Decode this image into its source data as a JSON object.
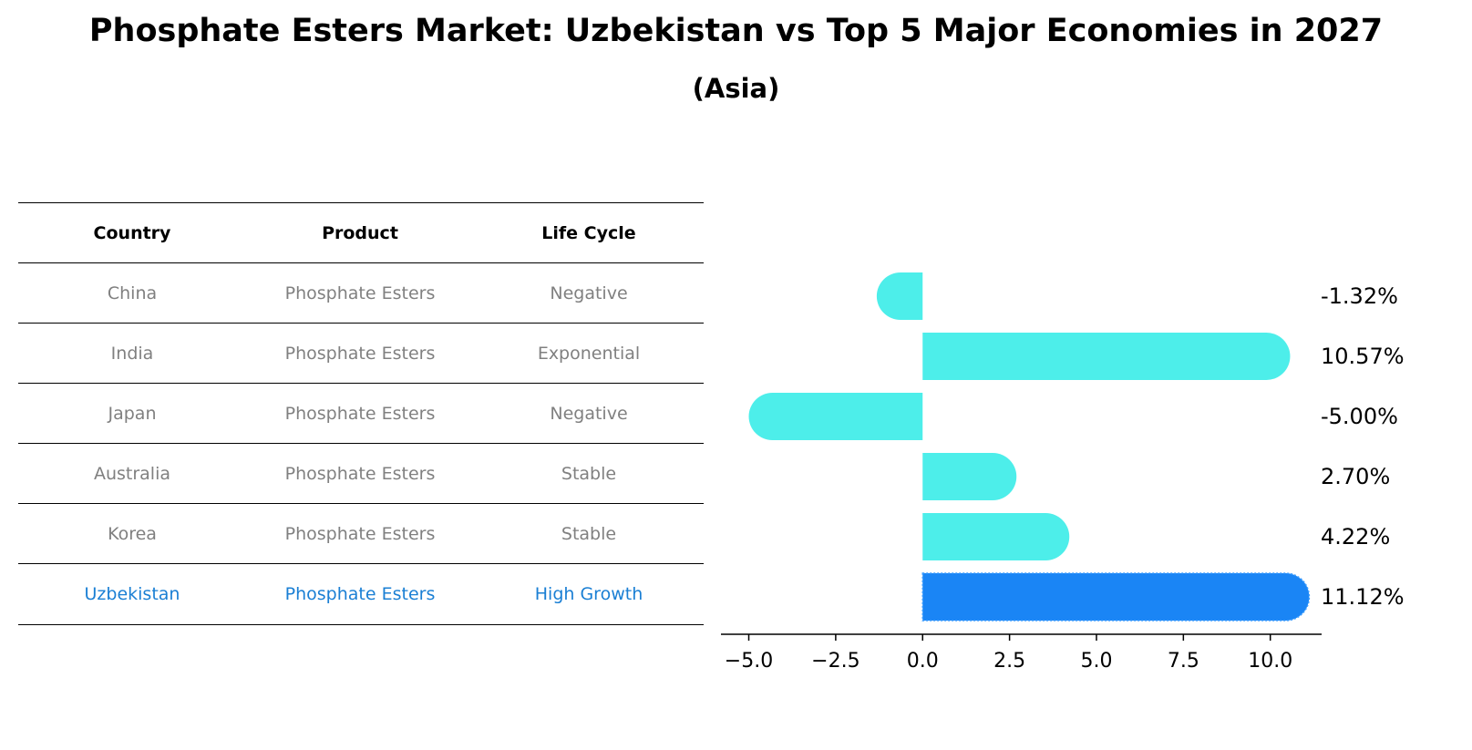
{
  "title": "Phosphate Esters Market: Uzbekistan vs Top 5 Major Economies in 2027",
  "subtitle": "(Asia)",
  "table": {
    "headers": [
      "Country",
      "Product",
      "Life Cycle"
    ],
    "rows": [
      [
        "China",
        "Phosphate Esters",
        "Negative"
      ],
      [
        "India",
        "Phosphate Esters",
        "Exponential"
      ],
      [
        "Japan",
        "Phosphate Esters",
        "Negative"
      ],
      [
        "Australia",
        "Phosphate Esters",
        "Stable"
      ],
      [
        "Korea",
        "Phosphate Esters",
        "Stable"
      ],
      [
        "Uzbekistan",
        "Phosphate Esters",
        "High Growth"
      ]
    ]
  },
  "colors": {
    "bar": "#4deeea",
    "highlight_bar": "#1a85f5",
    "highlight_text": "#1a7fd4",
    "muted_text": "#808080"
  },
  "chart_data": {
    "type": "bar",
    "orientation": "horizontal",
    "categories": [
      "China",
      "India",
      "Japan",
      "Australia",
      "Korea",
      "Uzbekistan"
    ],
    "values": [
      -1.32,
      10.57,
      -5.0,
      2.7,
      4.22,
      11.12
    ],
    "value_labels": [
      "-1.32%",
      "10.57%",
      "-5.00%",
      "2.70%",
      "4.22%",
      "11.12%"
    ],
    "highlight": "Uzbekistan",
    "xlim": [
      -5.8,
      12.0
    ],
    "xticks": [
      -5.0,
      -2.5,
      0.0,
      2.5,
      5.0,
      7.5,
      10.0
    ],
    "xtick_labels": [
      "−5.0",
      "−2.5",
      "0.0",
      "2.5",
      "5.0",
      "7.5",
      "10.0"
    ]
  }
}
